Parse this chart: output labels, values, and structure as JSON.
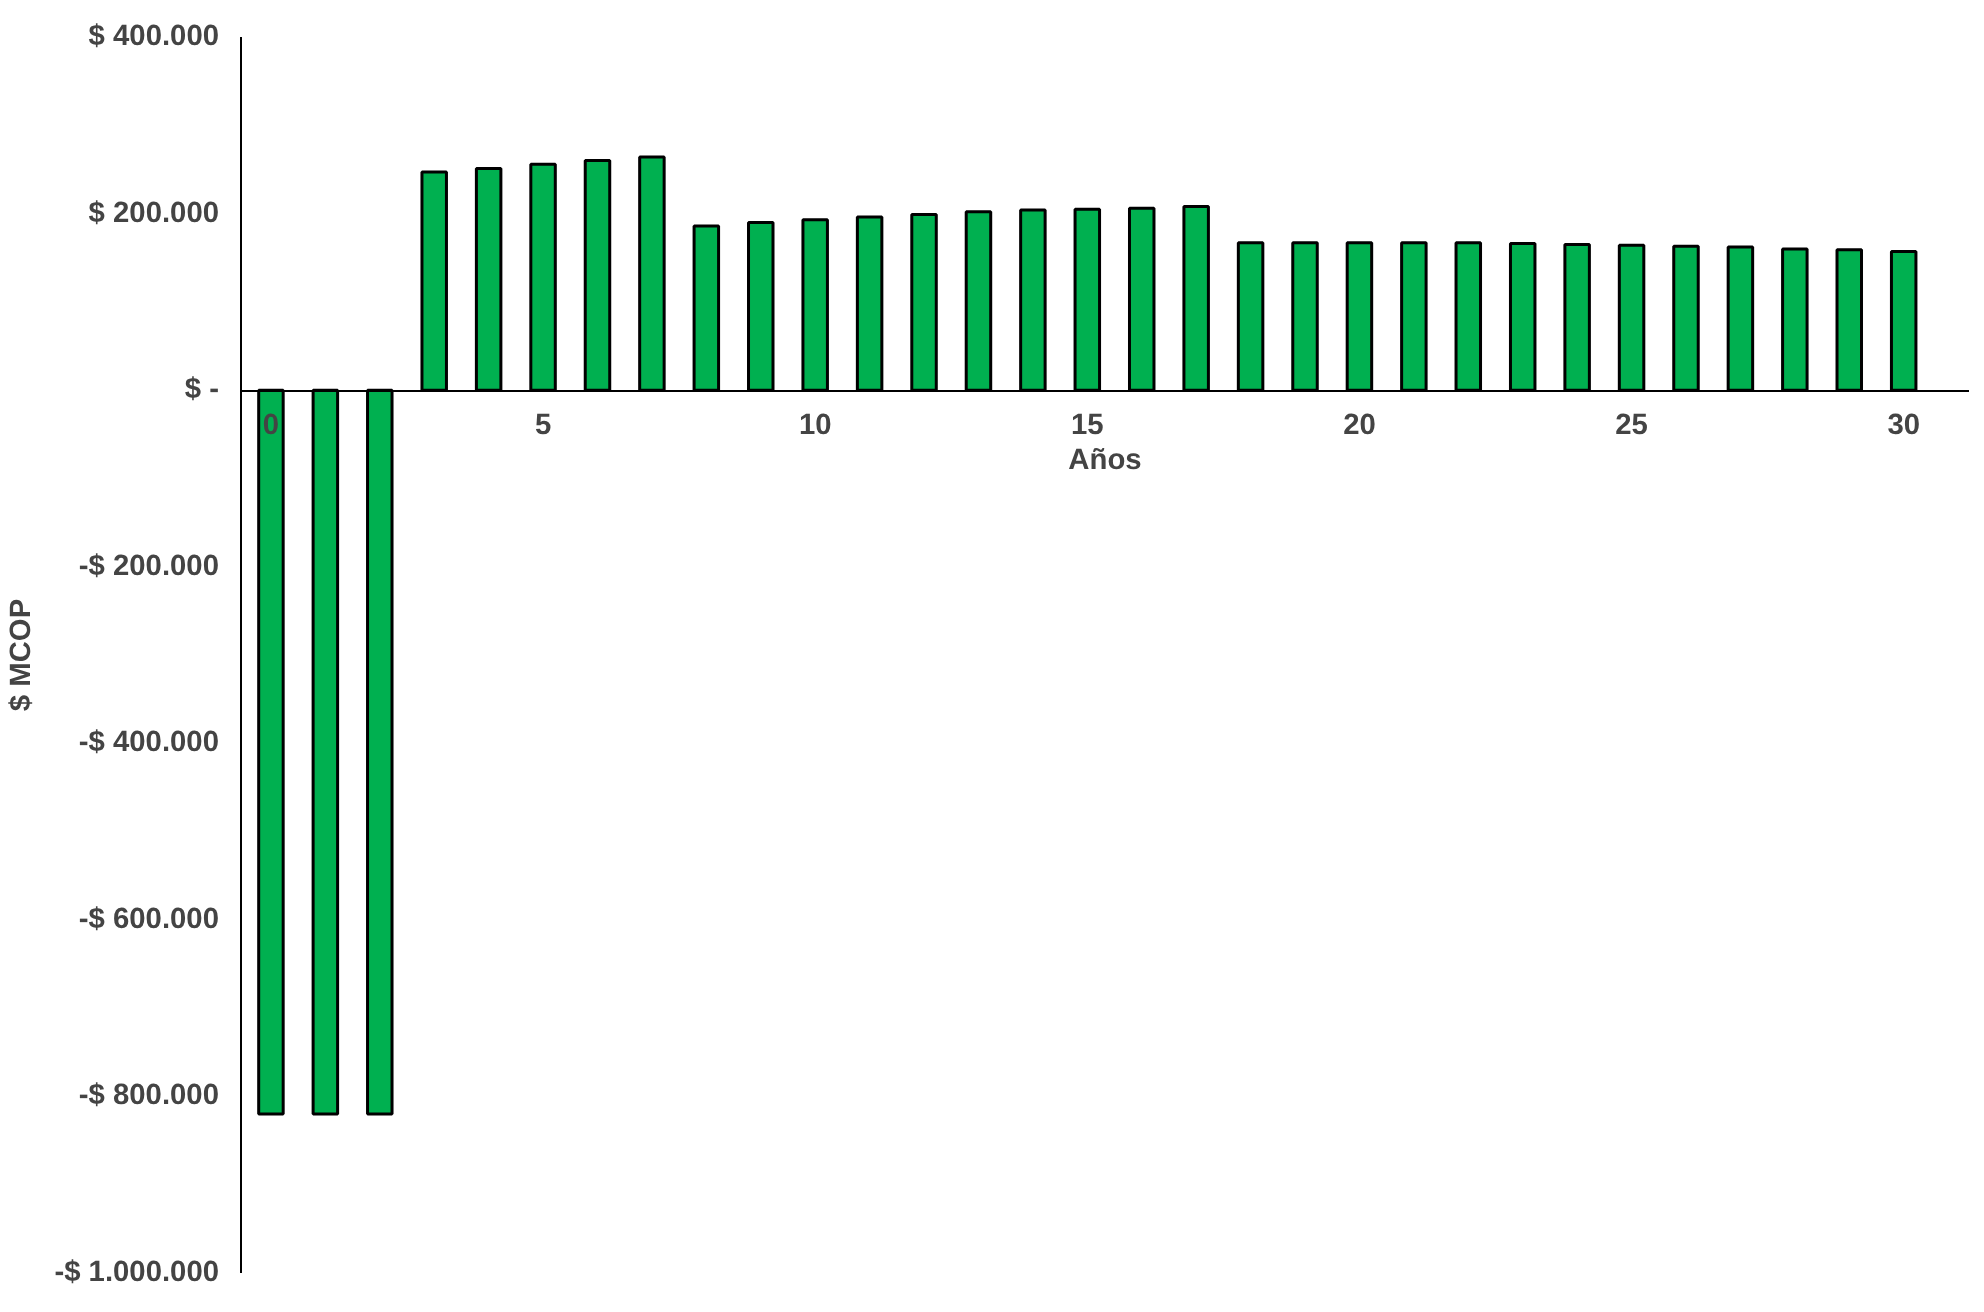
{
  "chart_data": {
    "type": "bar",
    "xlabel": "Años",
    "ylabel": "$ MCOP",
    "x": [
      0,
      1,
      2,
      3,
      4,
      5,
      6,
      7,
      8,
      9,
      10,
      11,
      12,
      13,
      14,
      15,
      16,
      17,
      18,
      19,
      20,
      21,
      22,
      23,
      24,
      25,
      26,
      27,
      28,
      29,
      30
    ],
    "values": [
      -820000,
      -820000,
      -820000,
      247000,
      251000,
      256000,
      260000,
      264000,
      186000,
      190000,
      193000,
      196000,
      199000,
      202000,
      204000,
      205000,
      206000,
      208000,
      167000,
      167000,
      167000,
      167000,
      167000,
      166000,
      165000,
      164000,
      163000,
      162000,
      160000,
      159000,
      157000
    ],
    "color": "#00b050",
    "xlim": [
      -0.55,
      31.2
    ],
    "xticks": [
      0,
      5,
      10,
      15,
      20,
      25,
      30
    ],
    "ylim": [
      -1000000,
      400000
    ],
    "yticks": [
      {
        "value": 400000,
        "label": "$ 400.000"
      },
      {
        "value": 200000,
        "label": "$ 200.000"
      },
      {
        "value": 0,
        "label": "$ -"
      },
      {
        "value": -200000,
        "label": "-$ 200.000"
      },
      {
        "value": -400000,
        "label": "-$ 400.000"
      },
      {
        "value": -600000,
        "label": "-$ 600.000"
      },
      {
        "value": -800000,
        "label": "-$ 800.000"
      },
      {
        "value": -1000000,
        "label": "-$ 1.000.000"
      }
    ],
    "grid": false
  }
}
